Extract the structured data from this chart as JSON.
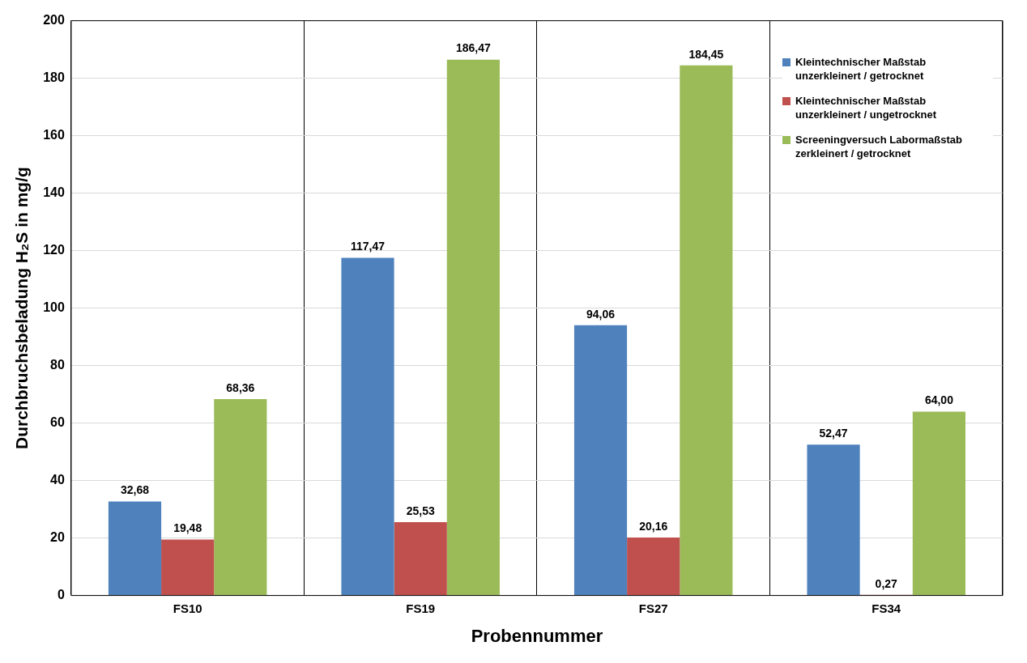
{
  "chart_data": {
    "type": "bar",
    "xlabel": "Probennummer",
    "ylabel": "Durchbruchsbeladung H₂S in mg/g",
    "categories": [
      "FS10",
      "FS19",
      "FS27",
      "FS34"
    ],
    "series": [
      {
        "name": "Kleintechnischer Maßstab unzerkleinert / getrocknet",
        "color": "#4f81bd",
        "values": [
          32.68,
          117.47,
          94.06,
          52.47
        ],
        "value_labels": [
          "32,68",
          "117,47",
          "94,06",
          "52,47"
        ]
      },
      {
        "name": "Kleintechnischer Maßstab unzerkleinert / ungetrocknet",
        "color": "#c0504d",
        "values": [
          19.48,
          25.53,
          20.16,
          0.27
        ],
        "value_labels": [
          "19,48",
          "25,53",
          "20,16",
          "0,27"
        ]
      },
      {
        "name": "Screeningversuch Labormaßstab zerkleinert / getrocknet",
        "color": "#9bbb59",
        "values": [
          68.36,
          186.47,
          184.45,
          64.0
        ],
        "value_labels": [
          "68,36",
          "186,47",
          "184,45",
          "64,00"
        ]
      }
    ],
    "ylim": [
      0,
      200
    ],
    "yticks": [
      0,
      20,
      40,
      60,
      80,
      100,
      120,
      140,
      160,
      180,
      200
    ],
    "grid": true,
    "legend": "top right"
  }
}
